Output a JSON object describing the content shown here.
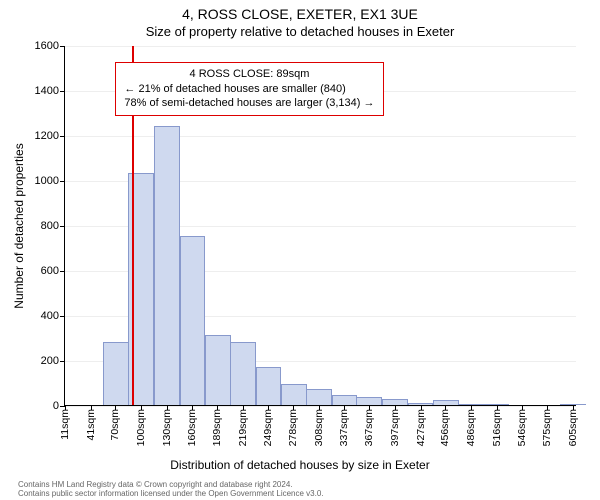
{
  "title": "4, ROSS CLOSE, EXETER, EX1 3UE",
  "subtitle": "Size of property relative to detached houses in Exeter",
  "ylabel": "Number of detached properties",
  "xlabel": "Distribution of detached houses by size in Exeter",
  "footer_line1": "Contains HM Land Registry data © Crown copyright and database right 2024.",
  "footer_line2": "Contains public sector information licensed under the Open Government Licence v3.0.",
  "chart": {
    "type": "histogram",
    "ylim": [
      0,
      1600
    ],
    "yticks": [
      0,
      200,
      400,
      600,
      800,
      1000,
      1200,
      1400,
      1600
    ],
    "xlim": [
      11,
      610
    ],
    "xticks": [
      11,
      41,
      70,
      100,
      130,
      160,
      189,
      219,
      249,
      278,
      308,
      337,
      367,
      397,
      427,
      456,
      486,
      516,
      546,
      575,
      605
    ],
    "xtick_suffix": "sqm",
    "bar_color": "#cfd9ef",
    "bar_border": "#8899cc",
    "grid_color": "#eeeeee",
    "bar_width_sqm": 30,
    "bars": [
      {
        "x_start": 26,
        "value": 0
      },
      {
        "x_start": 56,
        "value": 280
      },
      {
        "x_start": 85,
        "value": 1030
      },
      {
        "x_start": 115,
        "value": 1240
      },
      {
        "x_start": 145,
        "value": 750
      },
      {
        "x_start": 175,
        "value": 310
      },
      {
        "x_start": 204,
        "value": 280
      },
      {
        "x_start": 234,
        "value": 170
      },
      {
        "x_start": 264,
        "value": 95
      },
      {
        "x_start": 293,
        "value": 70
      },
      {
        "x_start": 323,
        "value": 45
      },
      {
        "x_start": 352,
        "value": 35
      },
      {
        "x_start": 382,
        "value": 25
      },
      {
        "x_start": 412,
        "value": 8
      },
      {
        "x_start": 442,
        "value": 22
      },
      {
        "x_start": 471,
        "value": 6
      },
      {
        "x_start": 501,
        "value": 5
      },
      {
        "x_start": 531,
        "value": 0
      },
      {
        "x_start": 561,
        "value": 0
      },
      {
        "x_start": 590,
        "value": 5
      }
    ],
    "marker": {
      "x": 89,
      "color": "#dd0000"
    },
    "annotation": {
      "line1": "4 ROSS CLOSE: 89sqm",
      "line2": "← 21% of detached houses are smaller (840)",
      "line3": "78% of semi-detached houses are larger (3,134) →",
      "border_color": "#dd0000",
      "left_sqm": 70,
      "top_count": 1530
    }
  }
}
